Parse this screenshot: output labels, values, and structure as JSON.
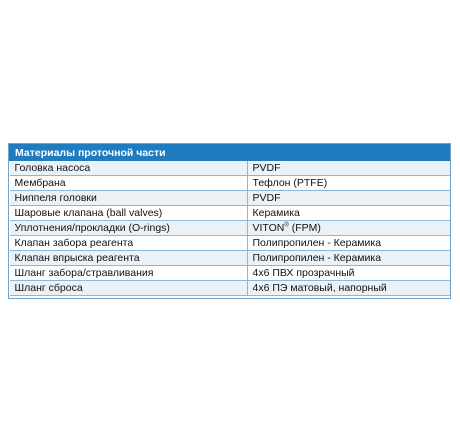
{
  "table": {
    "header": "Материалы проточной части",
    "rows": [
      {
        "name": "Головка насоса",
        "value": "PVDF"
      },
      {
        "name": "Мембрана",
        "value": "Тефлон (PTFE)"
      },
      {
        "name": "Ниппеля головки",
        "value": "PVDF"
      },
      {
        "name": "Шаровые клапана (ball valves)",
        "value": "Керамика"
      },
      {
        "name": "Уплотнения/прокладки (O-rings)",
        "value": "VITON",
        "value_sup": "®",
        "value_suffix": " (FPM)"
      },
      {
        "name": "Клапан забора реагента",
        "value": "Полипропилен - Керамика"
      },
      {
        "name": "Клапан впрыска реагента",
        "value": "Полипропилен - Керамика"
      },
      {
        "name": "Шланг забора/стравливания",
        "value": "4x6 ПВХ прозрачный"
      },
      {
        "name": "Шланг сброса",
        "value": "4x6 ПЭ матовый, напорный"
      }
    ]
  }
}
